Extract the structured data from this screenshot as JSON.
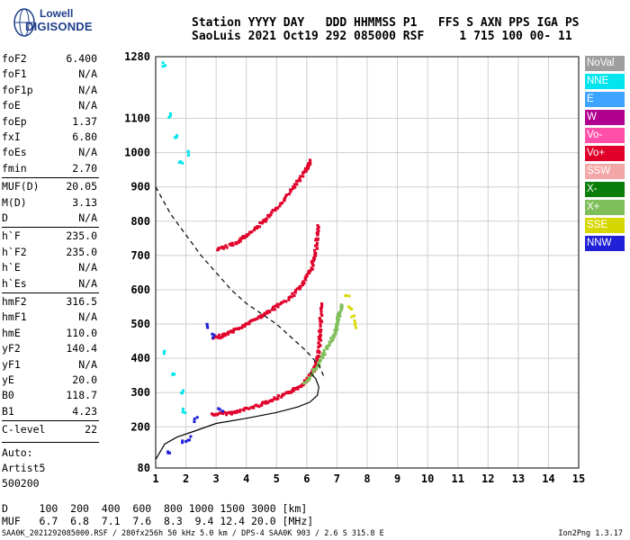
{
  "logo": {
    "line1": "Lowell",
    "line2": "DIGISONDE"
  },
  "header": {
    "line1": "Station YYYY DAY   DDD HHMMSS P1   FFS S AXN PPS IGA PS",
    "line2": "SaoLuis 2021 Oct19 292 085000 RSF     1 715 100 00- 11"
  },
  "params": [
    {
      "name": "foF2",
      "value": "6.400"
    },
    {
      "name": "foF1",
      "value": "N/A"
    },
    {
      "name": "foF1p",
      "value": "N/A"
    },
    {
      "name": "foE",
      "value": "N/A"
    },
    {
      "name": "foEp",
      "value": "1.37"
    },
    {
      "name": "fxI",
      "value": "6.80"
    },
    {
      "name": "foEs",
      "value": "N/A"
    },
    {
      "name": "fmin",
      "value": "2.70"
    },
    {
      "name": "MUF(D)",
      "value": "20.05"
    },
    {
      "name": "M(D)",
      "value": "3.13"
    },
    {
      "name": "D",
      "value": "N/A"
    },
    {
      "name": "h`F",
      "value": "235.0"
    },
    {
      "name": "h`F2",
      "value": "235.0"
    },
    {
      "name": "h`E",
      "value": "N/A"
    },
    {
      "name": "h`Es",
      "value": "N/A"
    },
    {
      "name": "hmF2",
      "value": "316.5"
    },
    {
      "name": "hmF1",
      "value": "N/A"
    },
    {
      "name": "hmE",
      "value": "110.0"
    },
    {
      "name": "yF2",
      "value": "140.4"
    },
    {
      "name": "yF1",
      "value": "N/A"
    },
    {
      "name": "yE",
      "value": "20.0"
    },
    {
      "name": "B0",
      "value": "118.7"
    },
    {
      "name": "B1",
      "value": "4.23"
    },
    {
      "name": "C-level",
      "value": "22"
    }
  ],
  "auto": {
    "line1": "Auto:",
    "line2": "Artist5",
    "line3": "500200"
  },
  "legend": [
    {
      "label": "NoVal",
      "color": "#9e9e9e"
    },
    {
      "label": "NNE",
      "color": "#00e5ee"
    },
    {
      "label": "E",
      "color": "#3da4ff"
    },
    {
      "label": "W",
      "color": "#b0008f"
    },
    {
      "label": "Vo-",
      "color": "#ff4fa8"
    },
    {
      "label": "Vo+",
      "color": "#e0002a"
    },
    {
      "label": "SSW",
      "color": "#f4a7a7"
    },
    {
      "label": "X-",
      "color": "#0a7d0a"
    },
    {
      "label": "X+",
      "color": "#7fbf5a"
    },
    {
      "label": "SSE",
      "color": "#d7d700"
    },
    {
      "label": "NNW",
      "color": "#2020d8"
    }
  ],
  "footer": {
    "line1": "D     100  200  400  600  800 1000 1500 3000 [km]",
    "line2": "MUF   6.7  6.8  7.1  7.6  8.3  9.4 12.4 20.0 [MHz]",
    "line3": "SAA0K_2021292085000.RSF / 280fx256h 50 kHz 5.0 km / DPS-4 SAA0K 903 / 2.6 S 315.8 E",
    "version": "Ion2Png 1.3.17"
  },
  "chart_data": {
    "type": "scatter",
    "x": {
      "min": 1,
      "max": 15,
      "ticks": [
        1,
        2,
        3,
        4,
        5,
        6,
        7,
        8,
        9,
        10,
        11,
        12,
        13,
        14,
        15
      ],
      "unit": "MHz"
    },
    "y": {
      "min": 80,
      "max": 1280,
      "ticks": [
        80,
        200,
        300,
        400,
        500,
        600,
        700,
        800,
        900,
        1000,
        1100,
        1280
      ],
      "unit": "km"
    },
    "grid": true,
    "traces": [
      {
        "name": "O-trace lower layer",
        "color": "Vo+",
        "points": [
          [
            2.85,
            240
          ],
          [
            3.5,
            245
          ],
          [
            4.2,
            262
          ],
          [
            4.8,
            282
          ],
          [
            5.3,
            300
          ],
          [
            5.7,
            320
          ],
          [
            6.0,
            345
          ],
          [
            6.2,
            370
          ],
          [
            6.35,
            420
          ],
          [
            6.4,
            480
          ],
          [
            6.45,
            560
          ]
        ]
      },
      {
        "name": "O-trace secondary",
        "color": "Vo+",
        "points": [
          [
            2.9,
            462
          ],
          [
            3.4,
            478
          ],
          [
            3.9,
            500
          ],
          [
            4.4,
            525
          ],
          [
            4.8,
            545
          ],
          [
            5.4,
            580
          ],
          [
            5.8,
            620
          ],
          [
            6.1,
            660
          ],
          [
            6.25,
            720
          ],
          [
            6.35,
            790
          ]
        ]
      },
      {
        "name": "O-trace upper",
        "color": "Vo+",
        "points": [
          [
            3.0,
            720
          ],
          [
            3.6,
            740
          ],
          [
            4.0,
            765
          ],
          [
            4.5,
            800
          ],
          [
            5.0,
            845
          ],
          [
            5.5,
            900
          ],
          [
            5.9,
            950
          ],
          [
            6.1,
            980
          ]
        ]
      },
      {
        "name": "X-trace",
        "color": "X+",
        "points": [
          [
            5.9,
            330
          ],
          [
            6.3,
            380
          ],
          [
            6.6,
            430
          ],
          [
            6.9,
            480
          ],
          [
            7.0,
            520
          ],
          [
            7.1,
            560
          ]
        ]
      },
      {
        "name": "SSE cluster",
        "color": "SSE",
        "points": [
          [
            7.3,
            580
          ],
          [
            7.4,
            550
          ],
          [
            7.5,
            520
          ],
          [
            7.55,
            500
          ]
        ]
      },
      {
        "name": "NNE cluster",
        "color": "NNE",
        "points": [
          [
            1.2,
            1260
          ],
          [
            1.4,
            1110
          ],
          [
            1.6,
            1050
          ],
          [
            1.8,
            980
          ],
          [
            2.0,
            1000
          ],
          [
            1.3,
            420
          ],
          [
            1.5,
            360
          ],
          [
            1.8,
            310
          ],
          [
            1.9,
            250
          ]
        ]
      },
      {
        "name": "NNW scatter",
        "color": "NNW",
        "points": [
          [
            1.9,
            160
          ],
          [
            2.1,
            170
          ],
          [
            2.7,
            500
          ],
          [
            2.9,
            470
          ],
          [
            3.1,
            250
          ],
          [
            1.4,
            130
          ],
          [
            2.3,
            225
          ]
        ]
      }
    ],
    "profile_curve": [
      [
        1.0,
        105
      ],
      [
        1.3,
        150
      ],
      [
        1.7,
        170
      ],
      [
        2.2,
        185
      ],
      [
        3.0,
        210
      ],
      [
        4.0,
        225
      ],
      [
        5.0,
        242
      ],
      [
        5.7,
        258
      ],
      [
        6.1,
        272
      ],
      [
        6.35,
        292
      ],
      [
        6.4,
        316
      ],
      [
        6.3,
        340
      ],
      [
        6.1,
        360
      ]
    ],
    "muf_curve": [
      [
        1.0,
        900
      ],
      [
        1.5,
        820
      ],
      [
        2.0,
        760
      ],
      [
        2.5,
        700
      ],
      [
        3.0,
        650
      ],
      [
        3.5,
        600
      ],
      [
        4.0,
        560
      ],
      [
        4.5,
        530
      ],
      [
        5.0,
        500
      ],
      [
        5.5,
        460
      ],
      [
        6.0,
        420
      ],
      [
        6.4,
        380
      ],
      [
        6.6,
        340
      ]
    ]
  }
}
